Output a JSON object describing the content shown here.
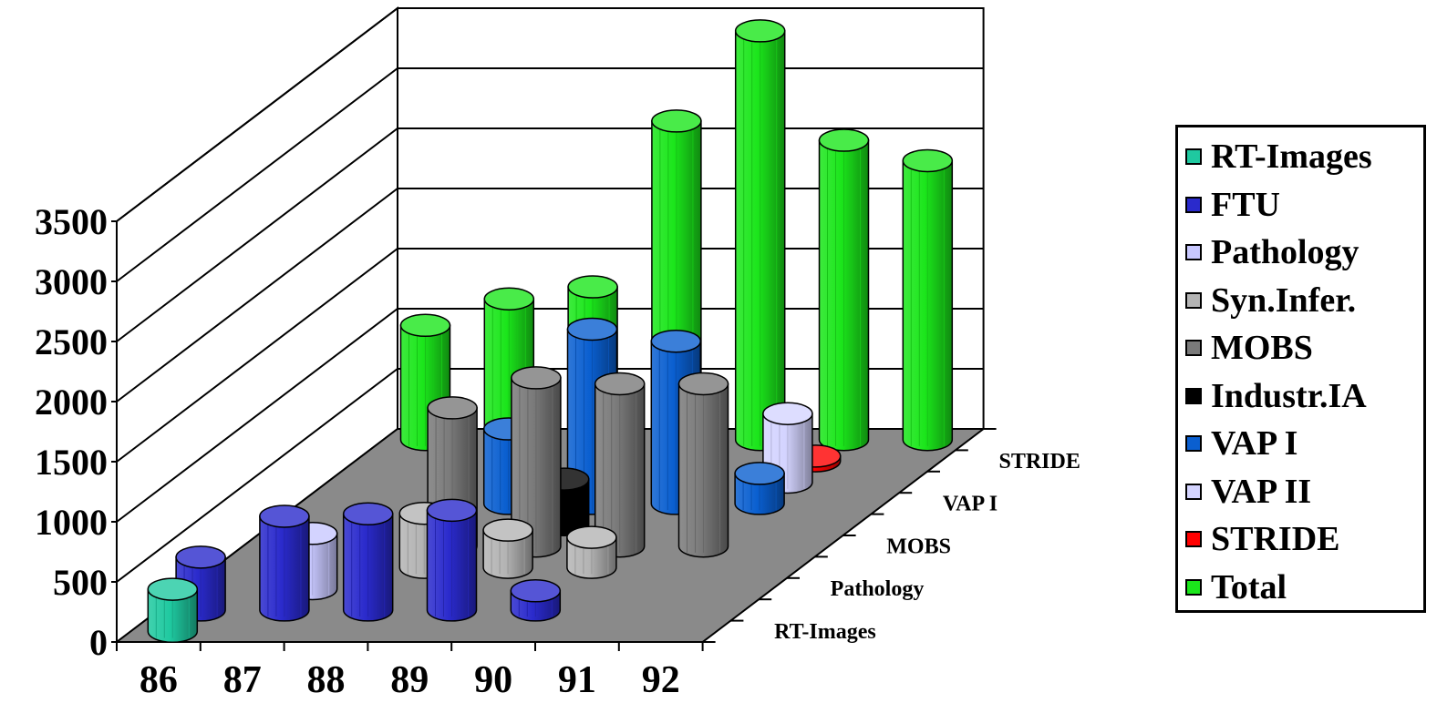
{
  "chart_data": {
    "type": "bar",
    "variant": "3d-column",
    "categories": [
      "86",
      "87",
      "88",
      "89",
      "90",
      "91",
      "92"
    ],
    "depth_labels": [
      "RT-Images",
      "Pathology",
      "MOBS",
      "VAP I",
      "STRIDE"
    ],
    "ylim": [
      0,
      3500
    ],
    "yticks": [
      "0",
      "500",
      "1000",
      "1500",
      "2000",
      "2500",
      "3000",
      "3500"
    ],
    "grid": true,
    "legend_position": "right",
    "series": [
      {
        "name": "RT-Images",
        "color": "#1fc9a0",
        "values": [
          350,
          null,
          null,
          null,
          null,
          null,
          null
        ]
      },
      {
        "name": "FTU",
        "color": "#2a2acc",
        "values": [
          440,
          780,
          800,
          830,
          160,
          null,
          null
        ]
      },
      {
        "name": "Pathology",
        "color": "#c8c8ff",
        "values": [
          null,
          460,
          null,
          null,
          null,
          null,
          null
        ]
      },
      {
        "name": "Syn.Infer.",
        "color": "#b4b4b4",
        "values": [
          null,
          null,
          450,
          310,
          250,
          null,
          null
        ]
      },
      {
        "name": "MOBS",
        "color": "#7a7a7a",
        "values": [
          null,
          null,
          1150,
          1400,
          1350,
          1350,
          null
        ]
      },
      {
        "name": "Industr.IA",
        "color": "#000000",
        "values": [
          null,
          null,
          null,
          380,
          null,
          null,
          null
        ]
      },
      {
        "name": "VAP I",
        "color": "#0a5fd0",
        "values": [
          null,
          null,
          620,
          1450,
          1350,
          250,
          null
        ]
      },
      {
        "name": "VAP II",
        "color": "#d4d4ff",
        "values": [
          null,
          null,
          null,
          null,
          null,
          570,
          null
        ]
      },
      {
        "name": "STRIDE",
        "color": "#ff0000",
        "values": [
          null,
          null,
          null,
          null,
          null,
          40,
          null
        ]
      },
      {
        "name": "Total",
        "color": "#1be61b",
        "values": [
          950,
          1170,
          1270,
          2650,
          3400,
          2490,
          2320
        ]
      }
    ]
  }
}
